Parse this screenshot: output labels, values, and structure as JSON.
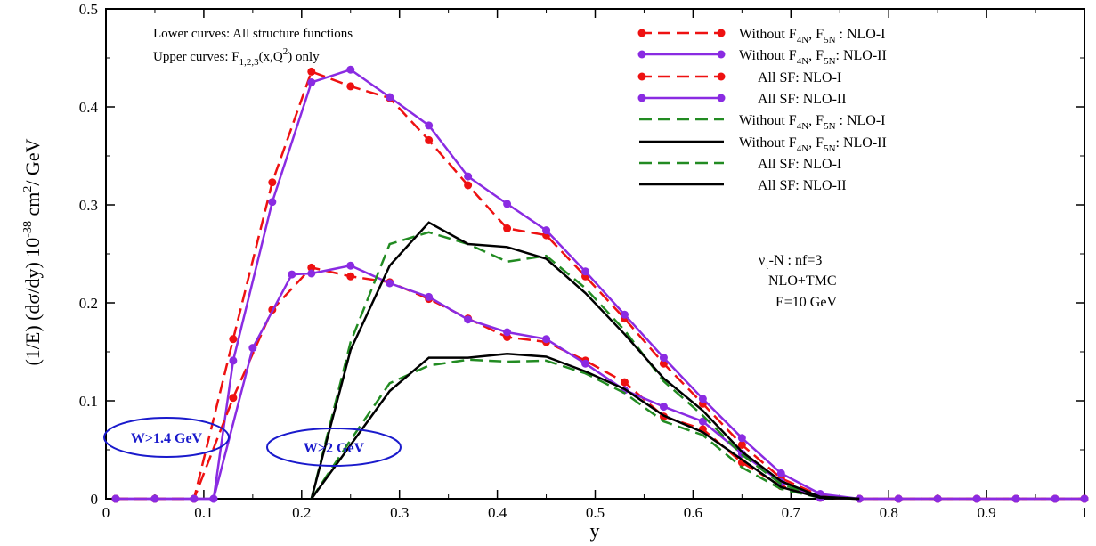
{
  "chart_data": {
    "type": "line",
    "xlabel": "y",
    "ylabel": "(1/E) (dσ/dy) 10^-38 cm^2/ GeV",
    "xlim": [
      0,
      1
    ],
    "ylim": [
      0,
      0.5
    ],
    "xticks": [
      "0",
      "0.1",
      "0.2",
      "0.3",
      "0.4",
      "0.5",
      "0.6",
      "0.7",
      "0.8",
      "0.9",
      "1"
    ],
    "yticks": [
      "0",
      "0.1",
      "0.2",
      "0.3",
      "0.4",
      "0.5"
    ],
    "annotations": {
      "lower": "Lower curves: All structure functions",
      "upper_pre": "Upper curves: F",
      "upper_sub": "1,2,3",
      "upper_post": "(x,Q",
      "upper_sup": "2",
      "upper_end": ")  only",
      "process_main": "ν",
      "process_sub": "τ",
      "process_rest": "-N :  nf=3",
      "order": "NLO+TMC",
      "energy": "E=10 GeV",
      "cut1": "W>1.4 GeV",
      "cut2": "W>2 GeV"
    },
    "legend": [
      {
        "pre": "Without  F",
        "s1": "4N",
        "mid": ", F",
        "s2": "5N",
        "post": " : NLO-I"
      },
      {
        "pre": "Without F",
        "s1": "4N",
        "mid": ", F",
        "s2": "5N",
        "post": ": NLO-II"
      },
      {
        "pre": "All SF: NLO-I"
      },
      {
        "pre": "All SF: NLO-II"
      },
      {
        "pre": "Without  F",
        "s1": "4N",
        "mid": ", F",
        "s2": "5N",
        "post": " : NLO-I"
      },
      {
        "pre": "Without F",
        "s1": "4N",
        "mid": ", F",
        "s2": "5N",
        "post": ": NLO-II"
      },
      {
        "pre": " All SF: NLO-I"
      },
      {
        "pre": "All SF: NLO-II"
      }
    ],
    "series": [
      {
        "color": "#ee1111",
        "dash": "dashed",
        "marker": "circle",
        "x": [
          0.01,
          0.05,
          0.09,
          0.13,
          0.17,
          0.21,
          0.25,
          0.29,
          0.33,
          0.37,
          0.41,
          0.45,
          0.49,
          0.53,
          0.57,
          0.61,
          0.65,
          0.69,
          0.73,
          0.77,
          0.81,
          0.85,
          0.89,
          0.93,
          0.97,
          1.0
        ],
        "y": [
          0,
          0,
          0,
          0.163,
          0.323,
          0.436,
          0.421,
          0.409,
          0.366,
          0.32,
          0.276,
          0.269,
          0.227,
          0.184,
          0.138,
          0.097,
          0.055,
          0.021,
          0.003,
          0,
          0,
          0,
          0,
          0,
          0,
          0
        ]
      },
      {
        "color": "#8a2be2",
        "dash": "solid",
        "marker": "circle",
        "x": [
          0.01,
          0.05,
          0.09,
          0.11,
          0.13,
          0.17,
          0.21,
          0.25,
          0.29,
          0.33,
          0.37,
          0.41,
          0.45,
          0.49,
          0.53,
          0.57,
          0.61,
          0.65,
          0.69,
          0.73,
          0.77,
          0.81,
          0.85,
          0.89,
          0.93,
          0.97,
          1.0
        ],
        "y": [
          0,
          0,
          0,
          0,
          0.141,
          0.303,
          0.425,
          0.438,
          0.41,
          0.381,
          0.329,
          0.301,
          0.274,
          0.232,
          0.188,
          0.144,
          0.102,
          0.062,
          0.026,
          0.005,
          0,
          0,
          0,
          0,
          0,
          0,
          0
        ]
      },
      {
        "color": "#ee1111",
        "dash": "dashed",
        "marker": "circle",
        "x": [
          0.01,
          0.05,
          0.09,
          0.13,
          0.17,
          0.21,
          0.25,
          0.29,
          0.33,
          0.37,
          0.41,
          0.45,
          0.49,
          0.53,
          0.57,
          0.61,
          0.65,
          0.69,
          0.73,
          0.77,
          0.81,
          0.85,
          0.89,
          0.93,
          0.97,
          1.0
        ],
        "y": [
          0,
          0,
          0,
          0.103,
          0.193,
          0.236,
          0.227,
          0.221,
          0.204,
          0.184,
          0.165,
          0.16,
          0.141,
          0.119,
          0.084,
          0.071,
          0.037,
          0.013,
          0.001,
          0,
          0,
          0,
          0,
          0,
          0,
          0
        ]
      },
      {
        "color": "#8a2be2",
        "dash": "solid",
        "marker": "circle",
        "x": [
          0.01,
          0.05,
          0.09,
          0.11,
          0.15,
          0.19,
          0.21,
          0.25,
          0.29,
          0.33,
          0.37,
          0.41,
          0.45,
          0.49,
          0.53,
          0.57,
          0.61,
          0.65,
          0.69,
          0.73,
          0.77,
          0.81,
          0.85,
          0.89,
          0.93,
          0.97,
          1.0
        ],
        "y": [
          0,
          0,
          0,
          0,
          0.154,
          0.229,
          0.23,
          0.238,
          0.22,
          0.206,
          0.183,
          0.17,
          0.163,
          0.138,
          0.111,
          0.094,
          0.079,
          0.046,
          0.017,
          0.001,
          0,
          0,
          0,
          0,
          0,
          0,
          0
        ]
      },
      {
        "color": "#228b22",
        "dash": "dashed",
        "marker": "none",
        "x": [
          0.21,
          0.25,
          0.29,
          0.33,
          0.37,
          0.41,
          0.45,
          0.49,
          0.53,
          0.57,
          0.61,
          0.65,
          0.69,
          0.73,
          0.77
        ],
        "y": [
          0,
          0.16,
          0.26,
          0.272,
          0.26,
          0.242,
          0.248,
          0.215,
          0.172,
          0.12,
          0.085,
          0.045,
          0.015,
          0.002,
          0
        ]
      },
      {
        "color": "#000000",
        "dash": "solid",
        "marker": "none",
        "x": [
          0.21,
          0.25,
          0.29,
          0.33,
          0.37,
          0.41,
          0.45,
          0.49,
          0.53,
          0.57,
          0.61,
          0.65,
          0.69,
          0.73,
          0.77
        ],
        "y": [
          0,
          0.152,
          0.238,
          0.282,
          0.26,
          0.257,
          0.245,
          0.21,
          0.168,
          0.123,
          0.09,
          0.048,
          0.018,
          0.002,
          0
        ]
      },
      {
        "color": "#228b22",
        "dash": "dashed",
        "marker": "none",
        "x": [
          0.21,
          0.25,
          0.29,
          0.33,
          0.37,
          0.41,
          0.45,
          0.49,
          0.53,
          0.57,
          0.61,
          0.65,
          0.69,
          0.73,
          0.77
        ],
        "y": [
          0,
          0.06,
          0.118,
          0.136,
          0.142,
          0.14,
          0.141,
          0.128,
          0.108,
          0.079,
          0.065,
          0.032,
          0.01,
          0.001,
          0
        ]
      },
      {
        "color": "#000000",
        "dash": "solid",
        "marker": "none",
        "x": [
          0.21,
          0.25,
          0.29,
          0.33,
          0.37,
          0.41,
          0.45,
          0.49,
          0.53,
          0.57,
          0.61,
          0.65,
          0.69,
          0.73,
          0.77
        ],
        "y": [
          0,
          0.055,
          0.11,
          0.144,
          0.144,
          0.148,
          0.145,
          0.13,
          0.112,
          0.085,
          0.068,
          0.04,
          0.012,
          0.001,
          0
        ]
      }
    ]
  }
}
